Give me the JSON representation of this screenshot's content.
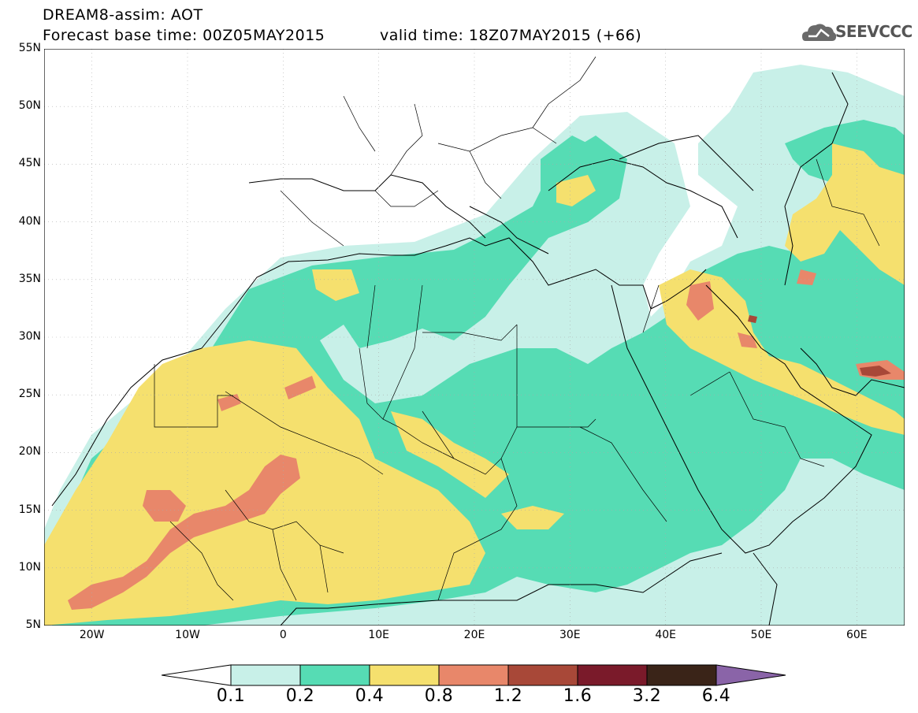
{
  "title": {
    "line1": "DREAM8-assim: AOT",
    "line2_left": "Forecast base time: 00Z05MAY2015",
    "line2_right": "valid time: 18Z07MAY2015 (+66)"
  },
  "logo": {
    "text": "SEEVCCC",
    "icon": "cloud-icon"
  },
  "axes": {
    "lat_labels": [
      "55N",
      "50N",
      "45N",
      "40N",
      "35N",
      "30N",
      "25N",
      "20N",
      "15N",
      "10N",
      "5N"
    ],
    "lon_labels": [
      "20W",
      "10W",
      "0",
      "10E",
      "20E",
      "30E",
      "40E",
      "50E",
      "60E"
    ]
  },
  "colorbar": {
    "colors": [
      "#ffffff",
      "#c8f0e8",
      "#56dcb4",
      "#f5e06e",
      "#e8876a",
      "#a84838",
      "#7a1a2a",
      "#3a2418",
      "#8a64a8"
    ],
    "labels": [
      "0.1",
      "0.2",
      "0.4",
      "0.8",
      "1.2",
      "1.6",
      "3.2",
      "6.4"
    ]
  }
}
